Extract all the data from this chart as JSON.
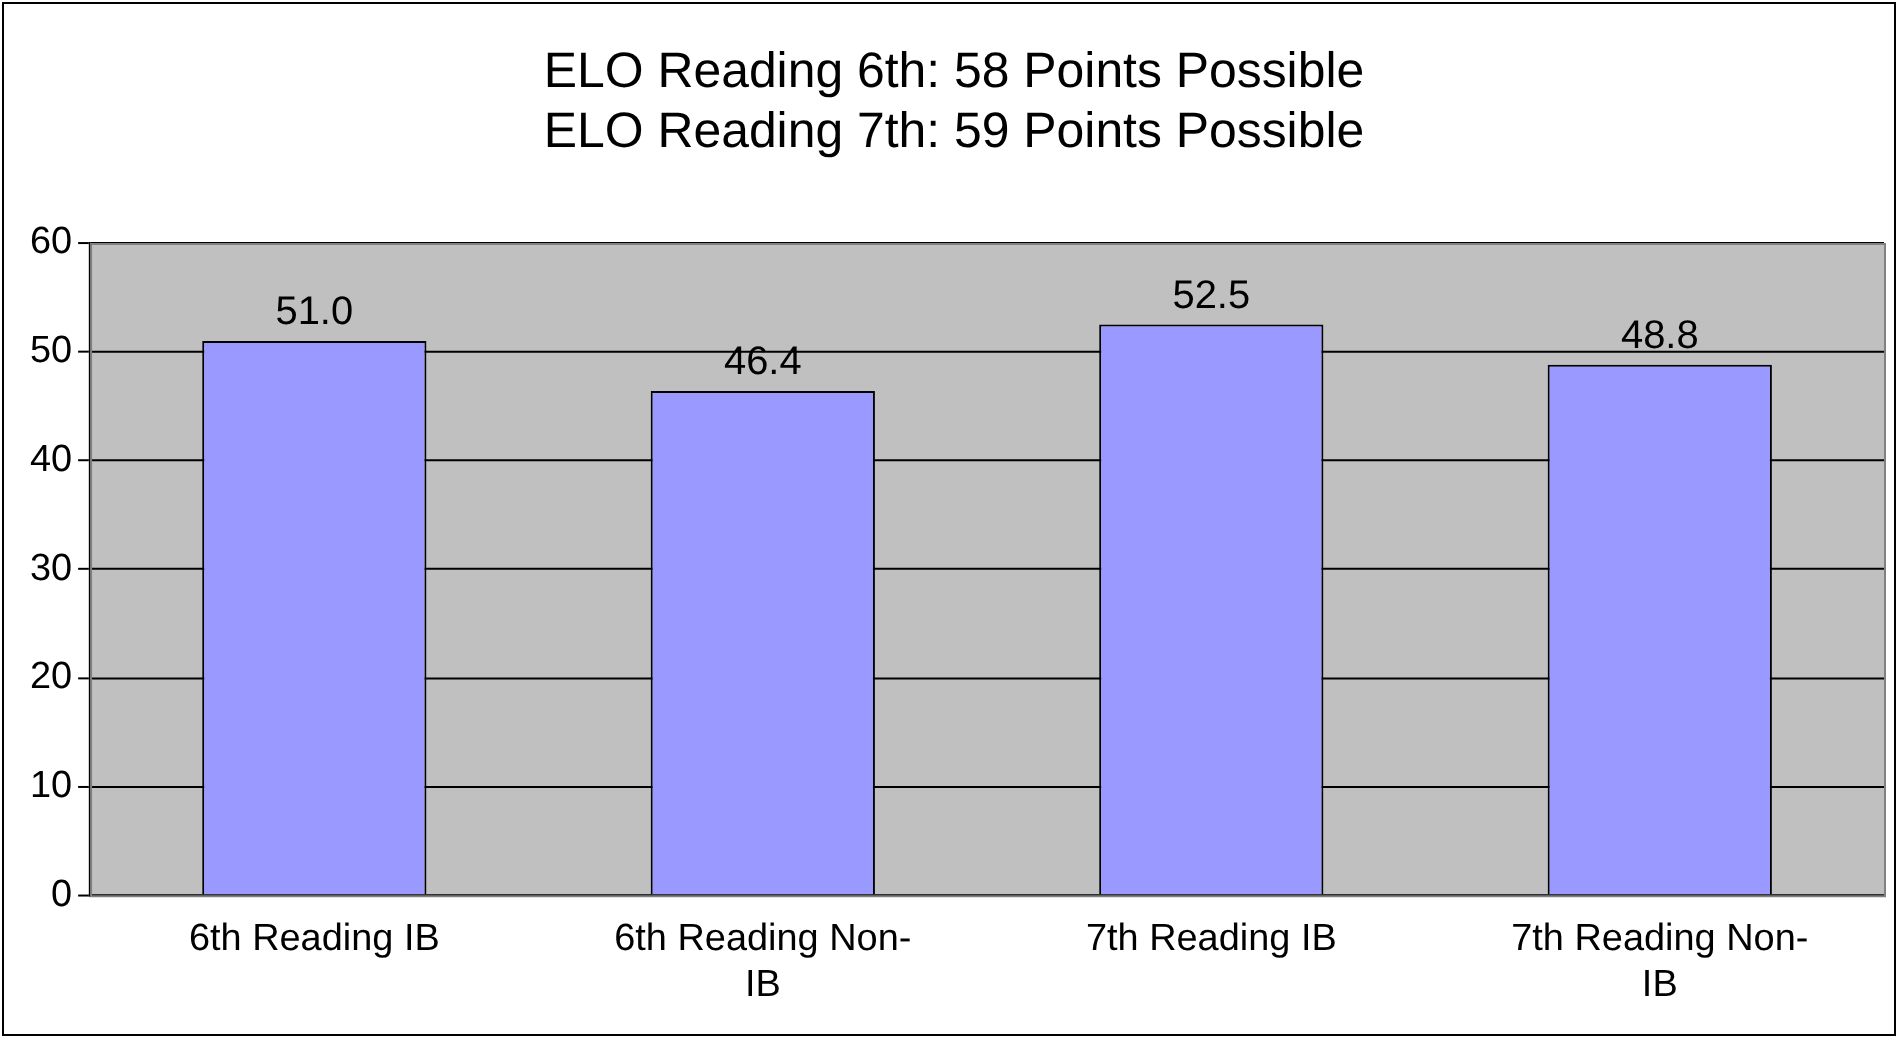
{
  "chart_data": {
    "type": "bar",
    "title": "ELO Reading 6th: 58 Points Possible\nELO Reading 7th: 59 Points Possible",
    "categories": [
      "6th Reading IB",
      "6th Reading Non-IB",
      "7th Reading IB",
      "7th Reading Non-IB"
    ],
    "values": [
      51.0,
      46.4,
      52.5,
      48.8
    ],
    "value_labels": [
      "51.0",
      "46.4",
      "52.5",
      "48.8"
    ],
    "color": "#9999ff",
    "ylim": [
      0,
      60
    ],
    "yticks": [
      0,
      10,
      20,
      30,
      40,
      50,
      60
    ],
    "grid": "y",
    "legend": false
  }
}
